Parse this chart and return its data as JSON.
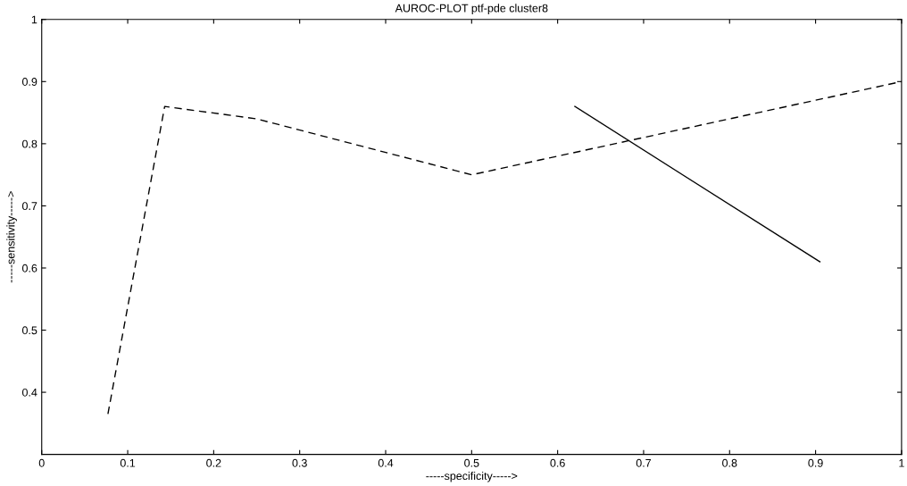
{
  "chart_data": {
    "type": "line",
    "title": "AUROC-PLOT ptf-pde cluster8",
    "xlabel": "-----specificity----->",
    "ylabel": "-----sensitivity----->",
    "xlim": [
      0,
      1
    ],
    "ylim": [
      0.3,
      1
    ],
    "xticks": [
      0,
      0.1,
      0.2,
      0.3,
      0.4,
      0.5,
      0.6,
      0.7,
      0.8,
      0.9,
      1
    ],
    "yticks": [
      0.4,
      0.5,
      0.6,
      0.7,
      0.8,
      0.9,
      1
    ],
    "grid": false,
    "legend": false,
    "series": [
      {
        "color": "#000000",
        "line_style": "dashed",
        "x": [
          0.077,
          0.143,
          0.25,
          0.5,
          1
        ],
        "values": [
          0.365,
          0.86,
          0.84,
          0.75,
          0.9
        ]
      },
      {
        "color": "#000000",
        "line_style": "solid",
        "x": [
          0.62,
          0.905
        ],
        "values": [
          0.86,
          0.61
        ]
      }
    ]
  }
}
